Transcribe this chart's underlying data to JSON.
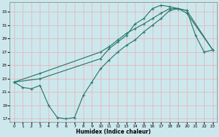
{
  "xlabel": "Humidex (Indice chaleur)",
  "xlim": [
    -0.5,
    23.5
  ],
  "ylim": [
    16.5,
    34.5
  ],
  "xticks": [
    0,
    1,
    2,
    3,
    4,
    5,
    6,
    7,
    8,
    9,
    10,
    11,
    12,
    13,
    14,
    15,
    16,
    17,
    18,
    19,
    20,
    21,
    22,
    23
  ],
  "yticks": [
    17,
    19,
    21,
    23,
    25,
    27,
    29,
    31,
    33
  ],
  "bg_color": "#cce8ed",
  "grid_color": "#e8b4b8",
  "line_color": "#2a7a6e",
  "line1_x": [
    0,
    1,
    2,
    3,
    4,
    5,
    6,
    7,
    8,
    9,
    10,
    11,
    12,
    13,
    14,
    15,
    16,
    17,
    18,
    19,
    20,
    21,
    22,
    23
  ],
  "line1_y": [
    22.5,
    21.7,
    21.5,
    22.0,
    19.0,
    17.2,
    17.0,
    17.2,
    20.5,
    22.5,
    24.5,
    25.8,
    27.0,
    28.0,
    28.8,
    30.0,
    31.0,
    32.0,
    33.2,
    33.5,
    33.2,
    29.5,
    27.0,
    27.3
  ],
  "line2_x": [
    0,
    3,
    10,
    11,
    12,
    13,
    14,
    15,
    16,
    17,
    18,
    19,
    20,
    23
  ],
  "line2_y": [
    22.5,
    23.0,
    26.0,
    27.5,
    28.5,
    29.5,
    31.2,
    32.0,
    33.5,
    34.0,
    33.8,
    33.5,
    33.2,
    27.3
  ],
  "line3_x": [
    0,
    3,
    10,
    11,
    12,
    13,
    14,
    15,
    16,
    17,
    18,
    19,
    20,
    23
  ],
  "line3_y": [
    22.5,
    23.8,
    27.0,
    27.8,
    28.8,
    29.8,
    30.5,
    31.2,
    32.0,
    32.8,
    33.5,
    33.5,
    32.8,
    27.3
  ]
}
